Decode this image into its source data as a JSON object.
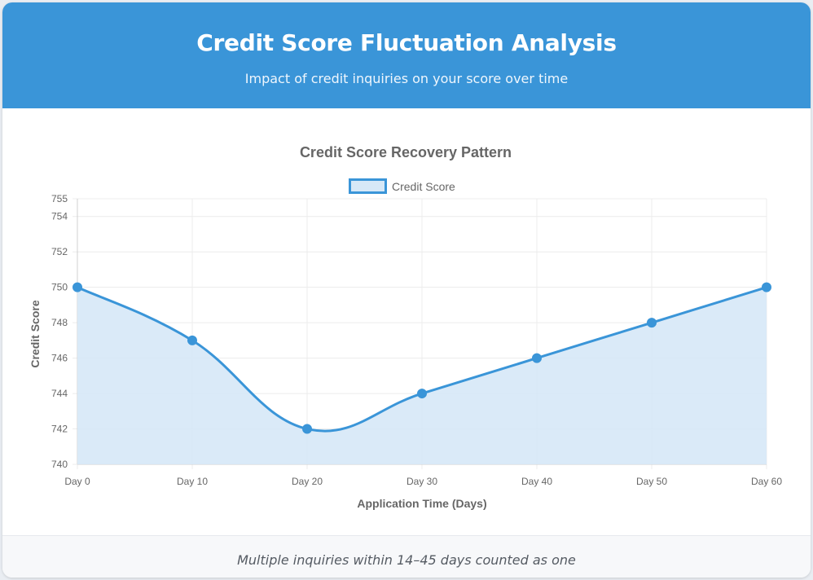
{
  "header": {
    "title": "Credit Score Fluctuation Analysis",
    "subtitle": "Impact of credit inquiries on your score over time"
  },
  "footer": {
    "note": "Multiple inquiries within 14–45 days counted as one"
  },
  "colors": {
    "accent": "#3a95d8",
    "fill": "#d6e8f7"
  },
  "chart_data": {
    "type": "area",
    "title": "Credit Score Recovery Pattern",
    "xlabel": "Application Time (Days)",
    "ylabel": "Credit Score",
    "categories": [
      "Day 0",
      "Day 10",
      "Day 20",
      "Day 30",
      "Day 40",
      "Day 50",
      "Day 60"
    ],
    "series": [
      {
        "name": "Credit Score",
        "values": [
          750,
          747,
          742,
          744,
          746,
          748,
          750
        ]
      }
    ],
    "ylim": [
      740,
      755
    ],
    "yticks": [
      740,
      742,
      744,
      746,
      748,
      750,
      752,
      754,
      755
    ],
    "grid": true,
    "legend": "top-center"
  }
}
